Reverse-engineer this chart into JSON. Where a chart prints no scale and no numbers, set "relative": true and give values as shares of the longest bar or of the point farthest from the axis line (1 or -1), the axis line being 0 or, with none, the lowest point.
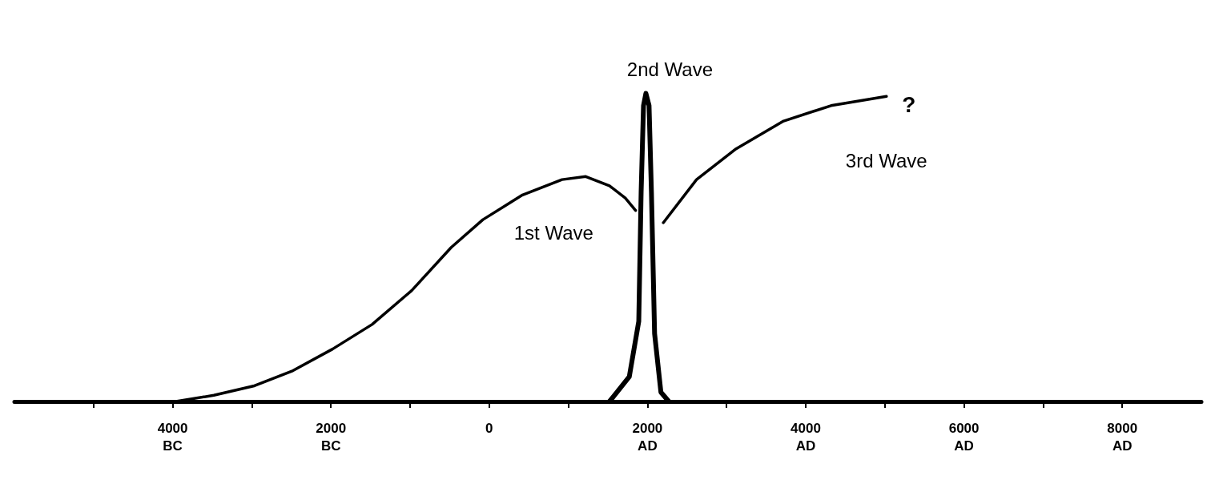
{
  "chart_data": {
    "type": "line",
    "relative": true,
    "xlim": [
      -6000,
      9000
    ],
    "xticks": [
      {
        "value": -5000,
        "label": null
      },
      {
        "value": -4000,
        "label": "4000\nBC"
      },
      {
        "value": -3000,
        "label": null
      },
      {
        "value": -2000,
        "label": "2000\nBC"
      },
      {
        "value": -1000,
        "label": null
      },
      0,
      {
        "value": 1000,
        "label": null
      },
      {
        "value": 2000,
        "label": "2000\nAD"
      },
      {
        "value": 3000,
        "label": null
      },
      {
        "value": 4000,
        "label": "4000\nAD"
      },
      {
        "value": 5000,
        "label": null
      },
      {
        "value": 6000,
        "label": "6000\nAD"
      },
      {
        "value": 7000,
        "label": null
      },
      {
        "value": 8000,
        "label": "8000\nAD"
      }
    ],
    "series": [
      {
        "name": "1st Wave",
        "color": "#000000",
        "x": [
          -3960,
          -3480,
          -2980,
          -2480,
          -1980,
          -1480,
          -980,
          -480,
          -80,
          420,
          920,
          1220,
          1520,
          1720,
          1850
        ],
        "values": [
          0,
          0.02,
          0.05,
          0.1,
          0.17,
          0.25,
          0.36,
          0.5,
          0.59,
          0.67,
          0.72,
          0.73,
          0.7,
          0.66,
          0.62
        ]
      },
      {
        "name": "2nd Wave",
        "color": "#000000",
        "x": [
          1520,
          1770,
          1890,
          1920,
          1950,
          1980,
          2020,
          2050,
          2090,
          2170,
          2270
        ],
        "values": [
          0,
          0.08,
          0.26,
          0.68,
          0.96,
          1,
          0.96,
          0.68,
          0.22,
          0.03,
          0
        ]
      },
      {
        "name": "3rd Wave",
        "color": "#000000",
        "x": [
          2200,
          2620,
          3120,
          3720,
          4320,
          5020
        ],
        "values": [
          0.58,
          0.72,
          0.82,
          0.91,
          0.96,
          0.99
        ]
      }
    ],
    "annotations": [
      "?"
    ],
    "grid": false,
    "marker": "none",
    "line_style": "solid"
  }
}
